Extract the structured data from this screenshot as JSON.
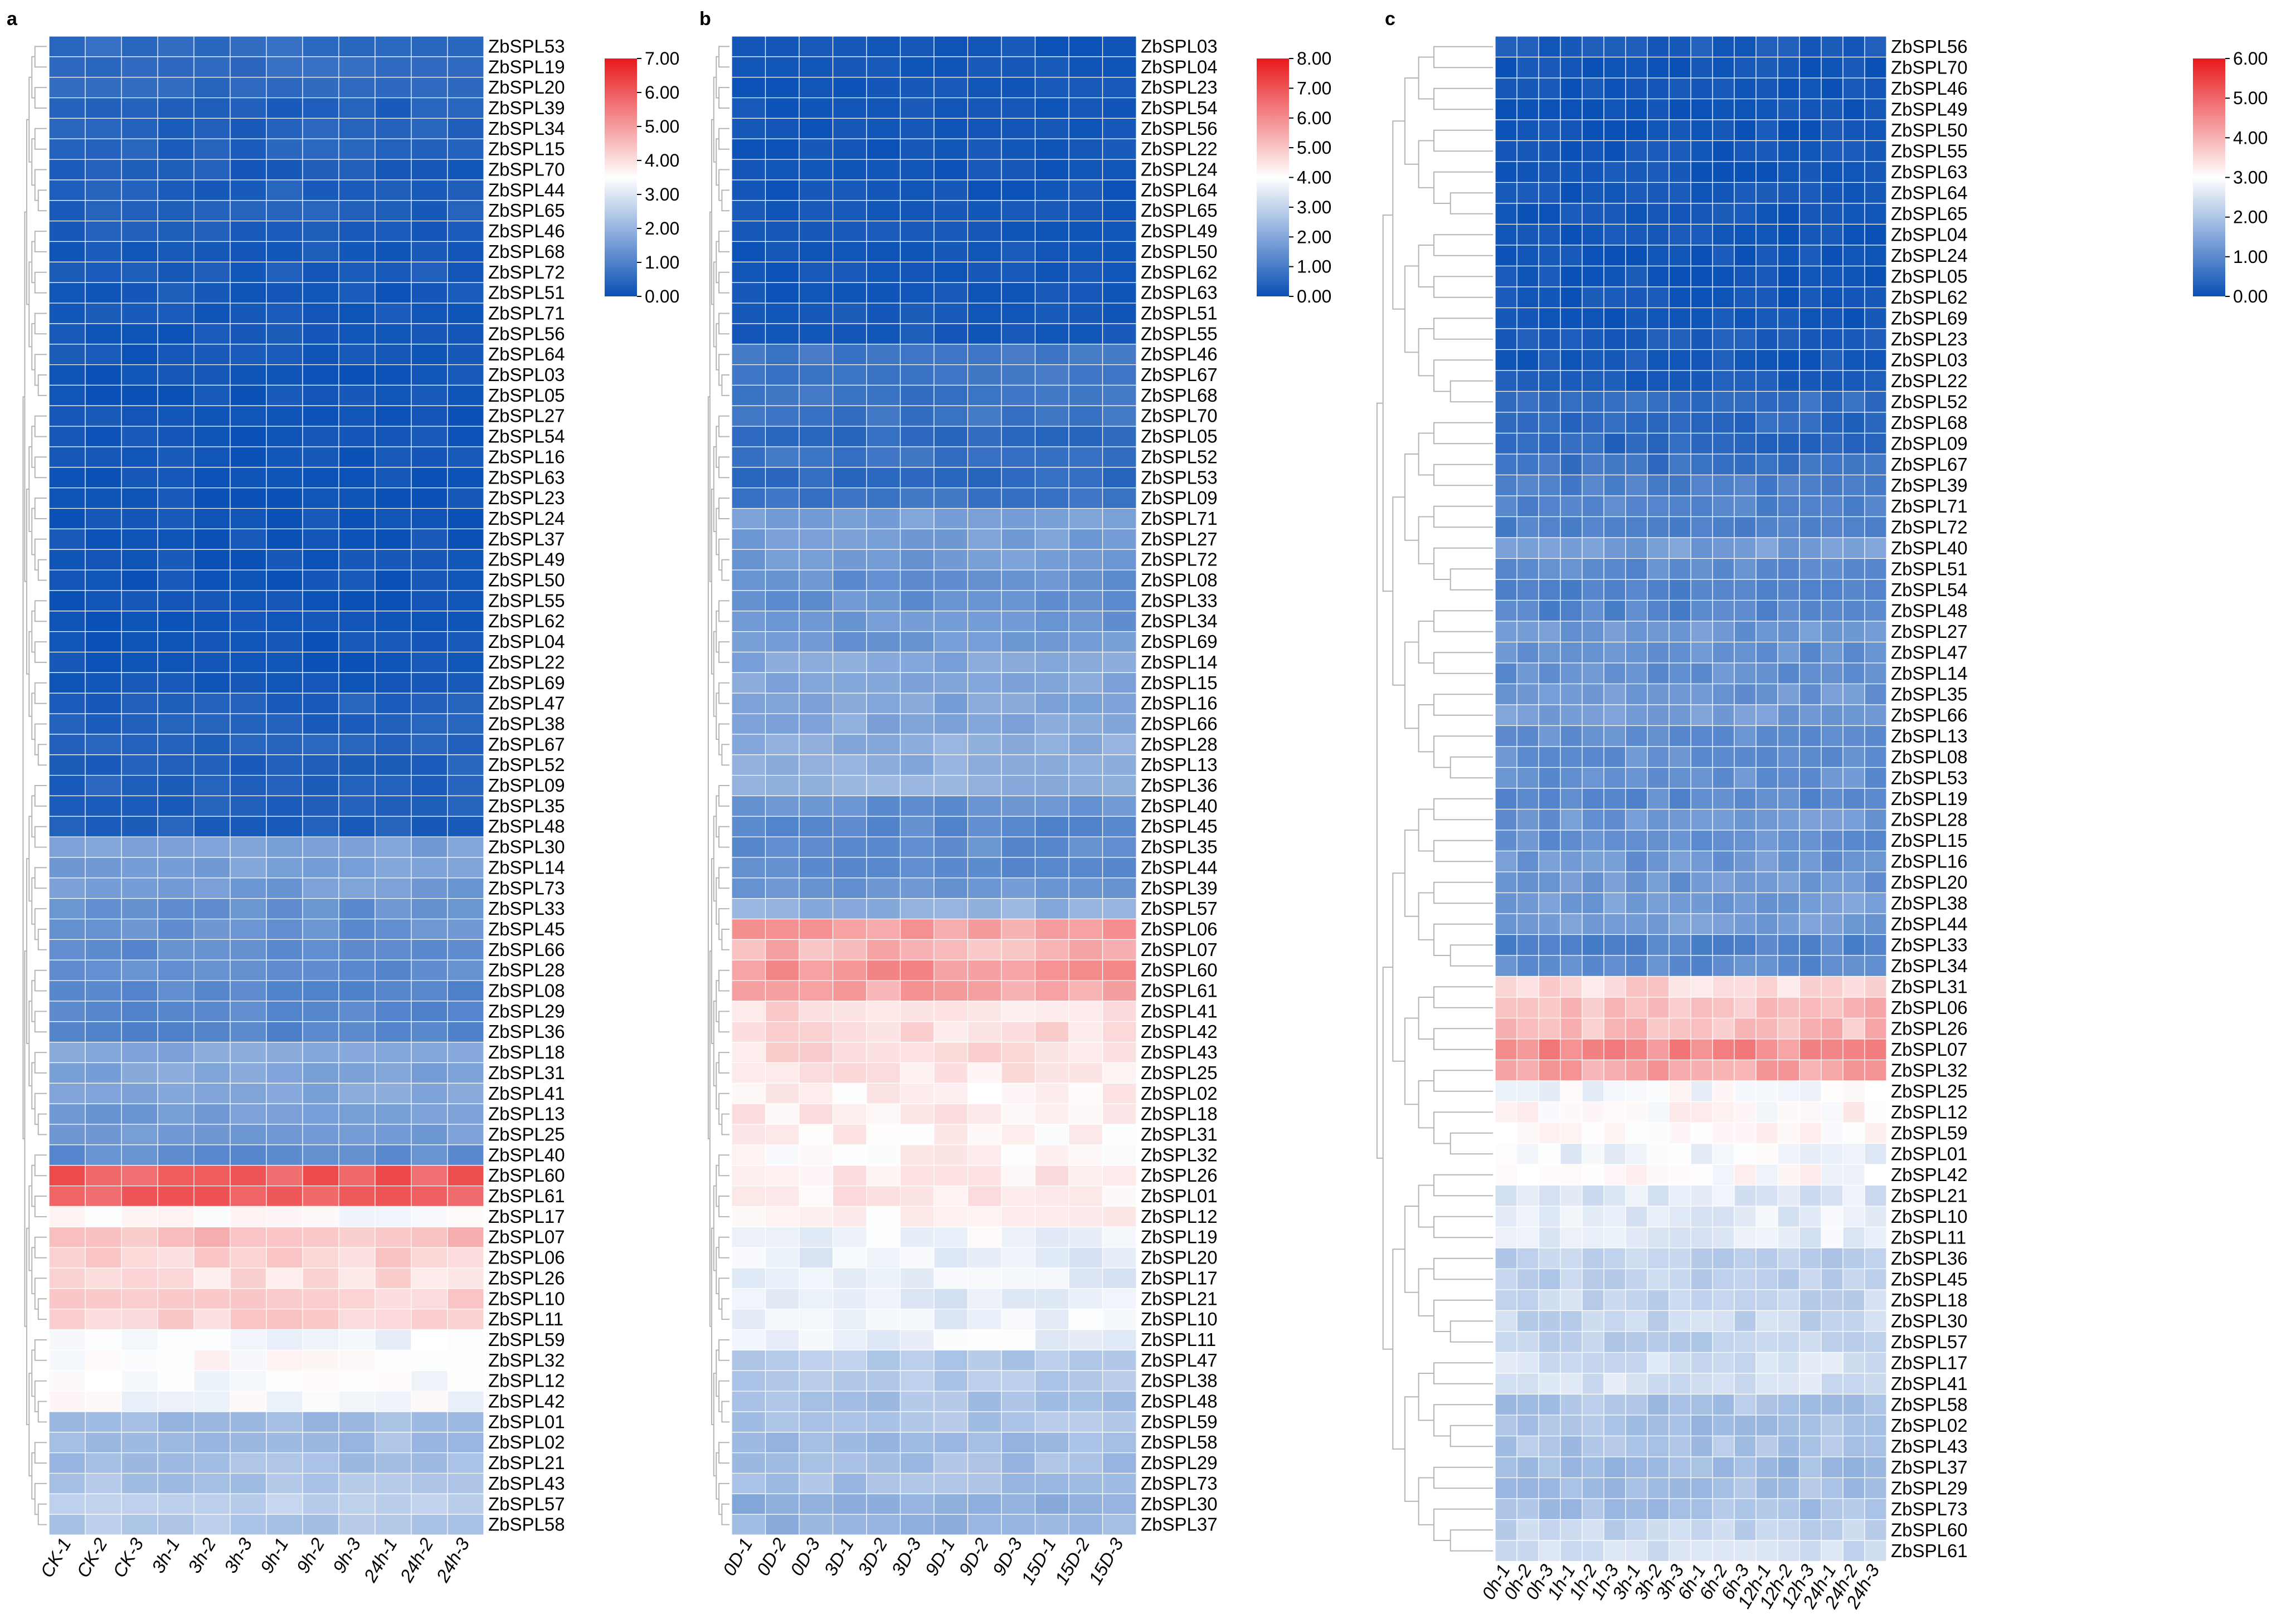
{
  "chart_data": [
    {
      "type": "heatmap",
      "panel": "a",
      "columns": [
        "CK-1",
        "CK-2",
        "CK-3",
        "3h-1",
        "3h-2",
        "3h-3",
        "9h-1",
        "9h-2",
        "9h-3",
        "24h-1",
        "24h-2",
        "24h-3"
      ],
      "rows": [
        "ZbSPL53",
        "ZbSPL19",
        "ZbSPL20",
        "ZbSPL39",
        "ZbSPL34",
        "ZbSPL15",
        "ZbSPL70",
        "ZbSPL44",
        "ZbSPL65",
        "ZbSPL46",
        "ZbSPL68",
        "ZbSPL72",
        "ZbSPL51",
        "ZbSPL71",
        "ZbSPL56",
        "ZbSPL64",
        "ZbSPL03",
        "ZbSPL05",
        "ZbSPL27",
        "ZbSPL54",
        "ZbSPL16",
        "ZbSPL63",
        "ZbSPL23",
        "ZbSPL24",
        "ZbSPL37",
        "ZbSPL49",
        "ZbSPL50",
        "ZbSPL55",
        "ZbSPL62",
        "ZbSPL04",
        "ZbSPL22",
        "ZbSPL69",
        "ZbSPL47",
        "ZbSPL38",
        "ZbSPL67",
        "ZbSPL52",
        "ZbSPL09",
        "ZbSPL35",
        "ZbSPL48",
        "ZbSPL30",
        "ZbSPL14",
        "ZbSPL73",
        "ZbSPL33",
        "ZbSPL45",
        "ZbSPL66",
        "ZbSPL28",
        "ZbSPL08",
        "ZbSPL29",
        "ZbSPL36",
        "ZbSPL18",
        "ZbSPL31",
        "ZbSPL41",
        "ZbSPL13",
        "ZbSPL25",
        "ZbSPL40",
        "ZbSPL60",
        "ZbSPL61",
        "ZbSPL17",
        "ZbSPL07",
        "ZbSPL06",
        "ZbSPL26",
        "ZbSPL10",
        "ZbSPL11",
        "ZbSPL59",
        "ZbSPL32",
        "ZbSPL12",
        "ZbSPL42",
        "ZbSPL01",
        "ZbSPL02",
        "ZbSPL21",
        "ZbSPL43",
        "ZbSPL57",
        "ZbSPL58"
      ],
      "row_levels": [
        0.55,
        0.55,
        0.5,
        0.3,
        0.35,
        0.35,
        0.25,
        0.3,
        0.3,
        0.25,
        0.2,
        0.2,
        0.15,
        0.15,
        0.15,
        0.15,
        0.1,
        0.1,
        0.1,
        0.1,
        0.1,
        0.1,
        0.1,
        0.1,
        0.1,
        0.1,
        0.1,
        0.1,
        0.1,
        0.1,
        0.1,
        0.1,
        0.3,
        0.3,
        0.35,
        0.35,
        0.35,
        0.35,
        0.3,
        1.6,
        1.6,
        1.5,
        1.3,
        1.3,
        1.2,
        1.2,
        1.1,
        1.1,
        1.1,
        1.7,
        1.7,
        1.7,
        1.5,
        1.5,
        1.2,
        6.0,
        6.0,
        3.5,
        4.5,
        4.2,
        4.0,
        4.2,
        4.2,
        3.3,
        3.5,
        3.4,
        3.4,
        2.1,
        2.2,
        2.2,
        2.3,
        2.5,
        2.4
      ],
      "variation": 0.6,
      "scale": {
        "min": 0,
        "max": 7,
        "ticks": [
          "0.00",
          "1.00",
          "2.00",
          "3.00",
          "4.00",
          "5.00",
          "6.00",
          "7.00"
        ]
      },
      "colormap": [
        "#0a50b5",
        "#ffffff",
        "#e8191c"
      ]
    },
    {
      "type": "heatmap",
      "panel": "b",
      "columns": [
        "0D-1",
        "0D-2",
        "0D-3",
        "3D-1",
        "3D-2",
        "3D-3",
        "9D-1",
        "9D-2",
        "9D-3",
        "15D-1",
        "15D-2",
        "15D-3"
      ],
      "rows": [
        "ZbSPL03",
        "ZbSPL04",
        "ZbSPL23",
        "ZbSPL54",
        "ZbSPL56",
        "ZbSPL22",
        "ZbSPL24",
        "ZbSPL64",
        "ZbSPL65",
        "ZbSPL49",
        "ZbSPL50",
        "ZbSPL62",
        "ZbSPL63",
        "ZbSPL51",
        "ZbSPL55",
        "ZbSPL46",
        "ZbSPL67",
        "ZbSPL68",
        "ZbSPL70",
        "ZbSPL05",
        "ZbSPL52",
        "ZbSPL53",
        "ZbSPL09",
        "ZbSPL71",
        "ZbSPL27",
        "ZbSPL72",
        "ZbSPL08",
        "ZbSPL33",
        "ZbSPL34",
        "ZbSPL69",
        "ZbSPL14",
        "ZbSPL15",
        "ZbSPL16",
        "ZbSPL66",
        "ZbSPL28",
        "ZbSPL13",
        "ZbSPL36",
        "ZbSPL40",
        "ZbSPL45",
        "ZbSPL35",
        "ZbSPL44",
        "ZbSPL39",
        "ZbSPL57",
        "ZbSPL06",
        "ZbSPL07",
        "ZbSPL60",
        "ZbSPL61",
        "ZbSPL41",
        "ZbSPL42",
        "ZbSPL43",
        "ZbSPL25",
        "ZbSPL02",
        "ZbSPL18",
        "ZbSPL31",
        "ZbSPL32",
        "ZbSPL26",
        "ZbSPL01",
        "ZbSPL12",
        "ZbSPL19",
        "ZbSPL20",
        "ZbSPL17",
        "ZbSPL21",
        "ZbSPL10",
        "ZbSPL11",
        "ZbSPL47",
        "ZbSPL38",
        "ZbSPL48",
        "ZbSPL59",
        "ZbSPL58",
        "ZbSPL29",
        "ZbSPL73",
        "ZbSPL30",
        "ZbSPL37"
      ],
      "row_levels": [
        0.15,
        0.15,
        0.15,
        0.15,
        0.15,
        0.15,
        0.15,
        0.15,
        0.15,
        0.15,
        0.15,
        0.15,
        0.15,
        0.2,
        0.2,
        0.9,
        0.9,
        0.8,
        0.8,
        0.6,
        0.8,
        0.6,
        0.8,
        1.9,
        1.8,
        1.7,
        1.5,
        1.5,
        1.6,
        1.6,
        2.0,
        2.0,
        1.9,
        2.0,
        2.1,
        2.1,
        2.2,
        1.5,
        1.3,
        1.4,
        1.3,
        1.6,
        2.2,
        5.6,
        5.3,
        5.8,
        5.6,
        4.6,
        4.6,
        4.6,
        4.4,
        4.3,
        4.4,
        4.2,
        4.2,
        4.4,
        4.4,
        4.2,
        3.8,
        3.6,
        3.6,
        3.5,
        3.7,
        3.7,
        2.8,
        2.8,
        2.6,
        2.7,
        2.4,
        2.5,
        2.5,
        2.2,
        2.3
      ],
      "variation": 0.7,
      "scale": {
        "min": 0,
        "max": 8,
        "ticks": [
          "0.00",
          "1.00",
          "2.00",
          "3.00",
          "4.00",
          "5.00",
          "6.00",
          "7.00",
          "8.00"
        ]
      },
      "colormap": [
        "#0a50b5",
        "#ffffff",
        "#e8191c"
      ]
    },
    {
      "type": "heatmap",
      "panel": "c",
      "columns": [
        "0h-1",
        "0h-2",
        "0h-3",
        "1h-1",
        "1h-2",
        "1h-3",
        "3h-1",
        "3h-2",
        "3h-3",
        "6h-1",
        "6h-2",
        "6h-3",
        "12h-1",
        "12h-2",
        "12h-3",
        "24h-1",
        "24h-2",
        "24h-3"
      ],
      "rows": [
        "ZbSPL56",
        "ZbSPL70",
        "ZbSPL46",
        "ZbSPL49",
        "ZbSPL50",
        "ZbSPL55",
        "ZbSPL63",
        "ZbSPL64",
        "ZbSPL65",
        "ZbSPL04",
        "ZbSPL24",
        "ZbSPL05",
        "ZbSPL62",
        "ZbSPL69",
        "ZbSPL23",
        "ZbSPL03",
        "ZbSPL22",
        "ZbSPL52",
        "ZbSPL68",
        "ZbSPL09",
        "ZbSPL67",
        "ZbSPL39",
        "ZbSPL71",
        "ZbSPL72",
        "ZbSPL40",
        "ZbSPL51",
        "ZbSPL54",
        "ZbSPL48",
        "ZbSPL27",
        "ZbSPL47",
        "ZbSPL14",
        "ZbSPL35",
        "ZbSPL66",
        "ZbSPL13",
        "ZbSPL08",
        "ZbSPL53",
        "ZbSPL19",
        "ZbSPL28",
        "ZbSPL15",
        "ZbSPL16",
        "ZbSPL20",
        "ZbSPL38",
        "ZbSPL44",
        "ZbSPL33",
        "ZbSPL34",
        "ZbSPL31",
        "ZbSPL06",
        "ZbSPL26",
        "ZbSPL07",
        "ZbSPL32",
        "ZbSPL25",
        "ZbSPL12",
        "ZbSPL59",
        "ZbSPL01",
        "ZbSPL42",
        "ZbSPL21",
        "ZbSPL10",
        "ZbSPL11",
        "ZbSPL36",
        "ZbSPL45",
        "ZbSPL18",
        "ZbSPL30",
        "ZbSPL57",
        "ZbSPL17",
        "ZbSPL41",
        "ZbSPL58",
        "ZbSPL02",
        "ZbSPL43",
        "ZbSPL37",
        "ZbSPL29",
        "ZbSPL73",
        "ZbSPL60",
        "ZbSPL61"
      ],
      "row_levels": [
        0.2,
        0.1,
        0.1,
        0.1,
        0.1,
        0.1,
        0.1,
        0.1,
        0.1,
        0.1,
        0.1,
        0.1,
        0.1,
        0.1,
        0.2,
        0.15,
        0.2,
        0.5,
        0.4,
        0.4,
        0.6,
        0.8,
        0.9,
        0.8,
        1.3,
        1.0,
        0.9,
        0.9,
        1.2,
        1.1,
        1.1,
        1.2,
        1.3,
        1.1,
        1.1,
        1.1,
        1.0,
        1.2,
        1.1,
        1.2,
        1.2,
        1.3,
        1.3,
        0.9,
        1.0,
        3.5,
        3.9,
        3.9,
        4.5,
        4.2,
        2.9,
        3.1,
        3.0,
        2.8,
        3.0,
        2.6,
        2.7,
        2.7,
        2.2,
        2.2,
        2.3,
        2.3,
        2.2,
        2.5,
        2.5,
        2.0,
        1.9,
        2.0,
        1.8,
        1.9,
        1.9,
        2.3,
        2.4
      ],
      "variation": 0.7,
      "scale": {
        "min": 0,
        "max": 6,
        "ticks": [
          "0.00",
          "1.00",
          "2.00",
          "3.00",
          "4.00",
          "5.00",
          "6.00"
        ]
      },
      "colormap": [
        "#0a50b5",
        "#ffffff",
        "#e8191c"
      ]
    }
  ]
}
